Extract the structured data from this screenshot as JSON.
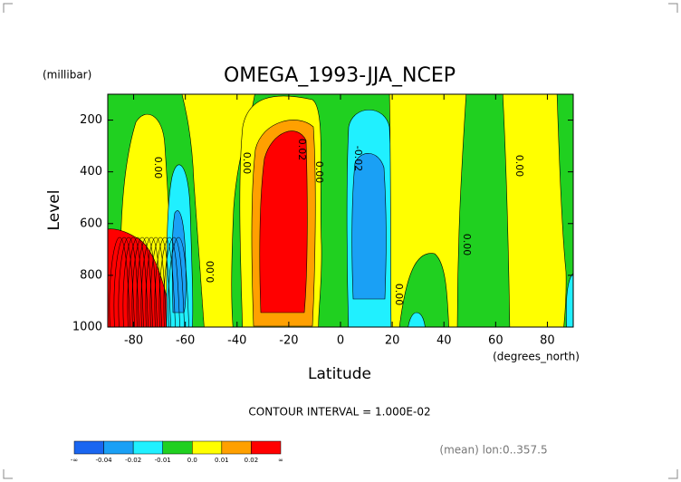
{
  "chart_data": {
    "type": "contour",
    "title": "OMEGA_1993-JJA_NCEP",
    "y_unit": "(millibar)",
    "ylabel": "Level",
    "xlabel": "Latitude",
    "x_unit": "(degrees_north)",
    "xlim": [
      -90,
      90
    ],
    "xticks": [
      -80,
      -60,
      -40,
      -20,
      0,
      20,
      40,
      60,
      80
    ],
    "ylim": [
      1000,
      100
    ],
    "yticks": [
      200,
      400,
      600,
      800,
      1000
    ],
    "contour_labels": [
      "0.00",
      "0.00",
      "0.02",
      "0.00",
      "-0.02",
      "0.00",
      "0.00",
      "0.00",
      "0.00"
    ],
    "contour_interval": "CONTOUR INTERVAL = 1.000E-02",
    "colorbar": {
      "labels": [
        "-∞",
        "-0.04",
        "-0.02",
        "-0.01",
        "0.0",
        "0.01",
        "0.02",
        "∞"
      ],
      "colors": [
        "#1a66f0",
        "#1aa0f5",
        "#20f0ff",
        "#20d020",
        "#ffff00",
        "#ffa000",
        "#ff0000"
      ]
    },
    "footer": "(mean) lon:0..357.5"
  }
}
